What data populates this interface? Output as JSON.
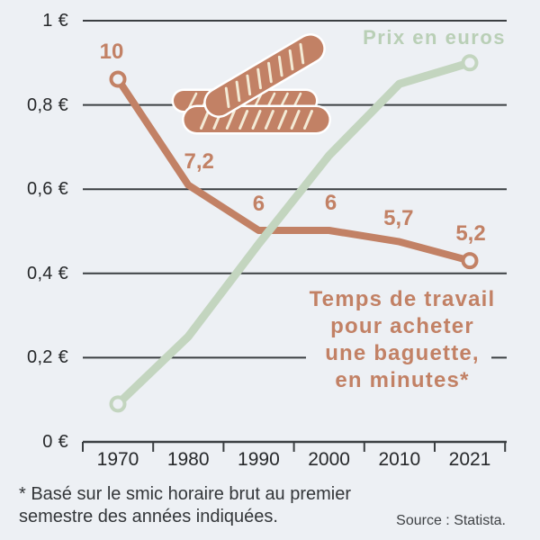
{
  "page": {
    "background": "#edf0f4"
  },
  "colors": {
    "brown": "#c28165",
    "green_line": "#c3d5bf",
    "green_label": "#b9cfb6",
    "grid": "#3b3f42",
    "axis_text": "#26282a",
    "cream_slash": "#f3ead5",
    "outline_white": "#ffffff"
  },
  "chart_data": {
    "type": "line",
    "categories": [
      "1970",
      "1980",
      "1990",
      "2000",
      "2010",
      "2021"
    ],
    "series": [
      {
        "name": "Prix en euros",
        "unit": "euros",
        "values": [
          0.09,
          0.25,
          0.47,
          0.68,
          0.85,
          0.9
        ],
        "color": "#c3d5bf",
        "markers": "open circles at first and last point"
      },
      {
        "name": "Temps de travail pour acheter une baguette, en minutes*",
        "unit": "minutes",
        "values": [
          10,
          7.2,
          6,
          6,
          5.7,
          5.2
        ],
        "point_labels": [
          "10",
          "7,2",
          "6",
          "6",
          "5,7",
          "5,2"
        ],
        "color": "#c28165",
        "markers": "open circles at first and last point"
      }
    ],
    "y_axis": {
      "tick_labels": [
        "1 €",
        "0,8 €",
        "0,6 €",
        "0,4 €",
        "0,2 €",
        "0 €"
      ],
      "tick_values": [
        1,
        0.8,
        0.6,
        0.4,
        0.2,
        0
      ],
      "range": [
        0,
        1
      ]
    },
    "grid": true,
    "legend_position": "inline series labels on chart"
  },
  "labels": {
    "price_series_label": "Prix en euros",
    "time_series_label_lines": [
      "Temps de travail",
      "pour acheter",
      "une baguette,",
      "en minutes*"
    ],
    "footnote_lines": [
      "* Basé sur le smic horaire brut au premier",
      "semestre des années indiquées."
    ],
    "source": "Source : Statista."
  },
  "illustration": {
    "name": "baguettes-icon",
    "description": "three crossed baguettes"
  }
}
